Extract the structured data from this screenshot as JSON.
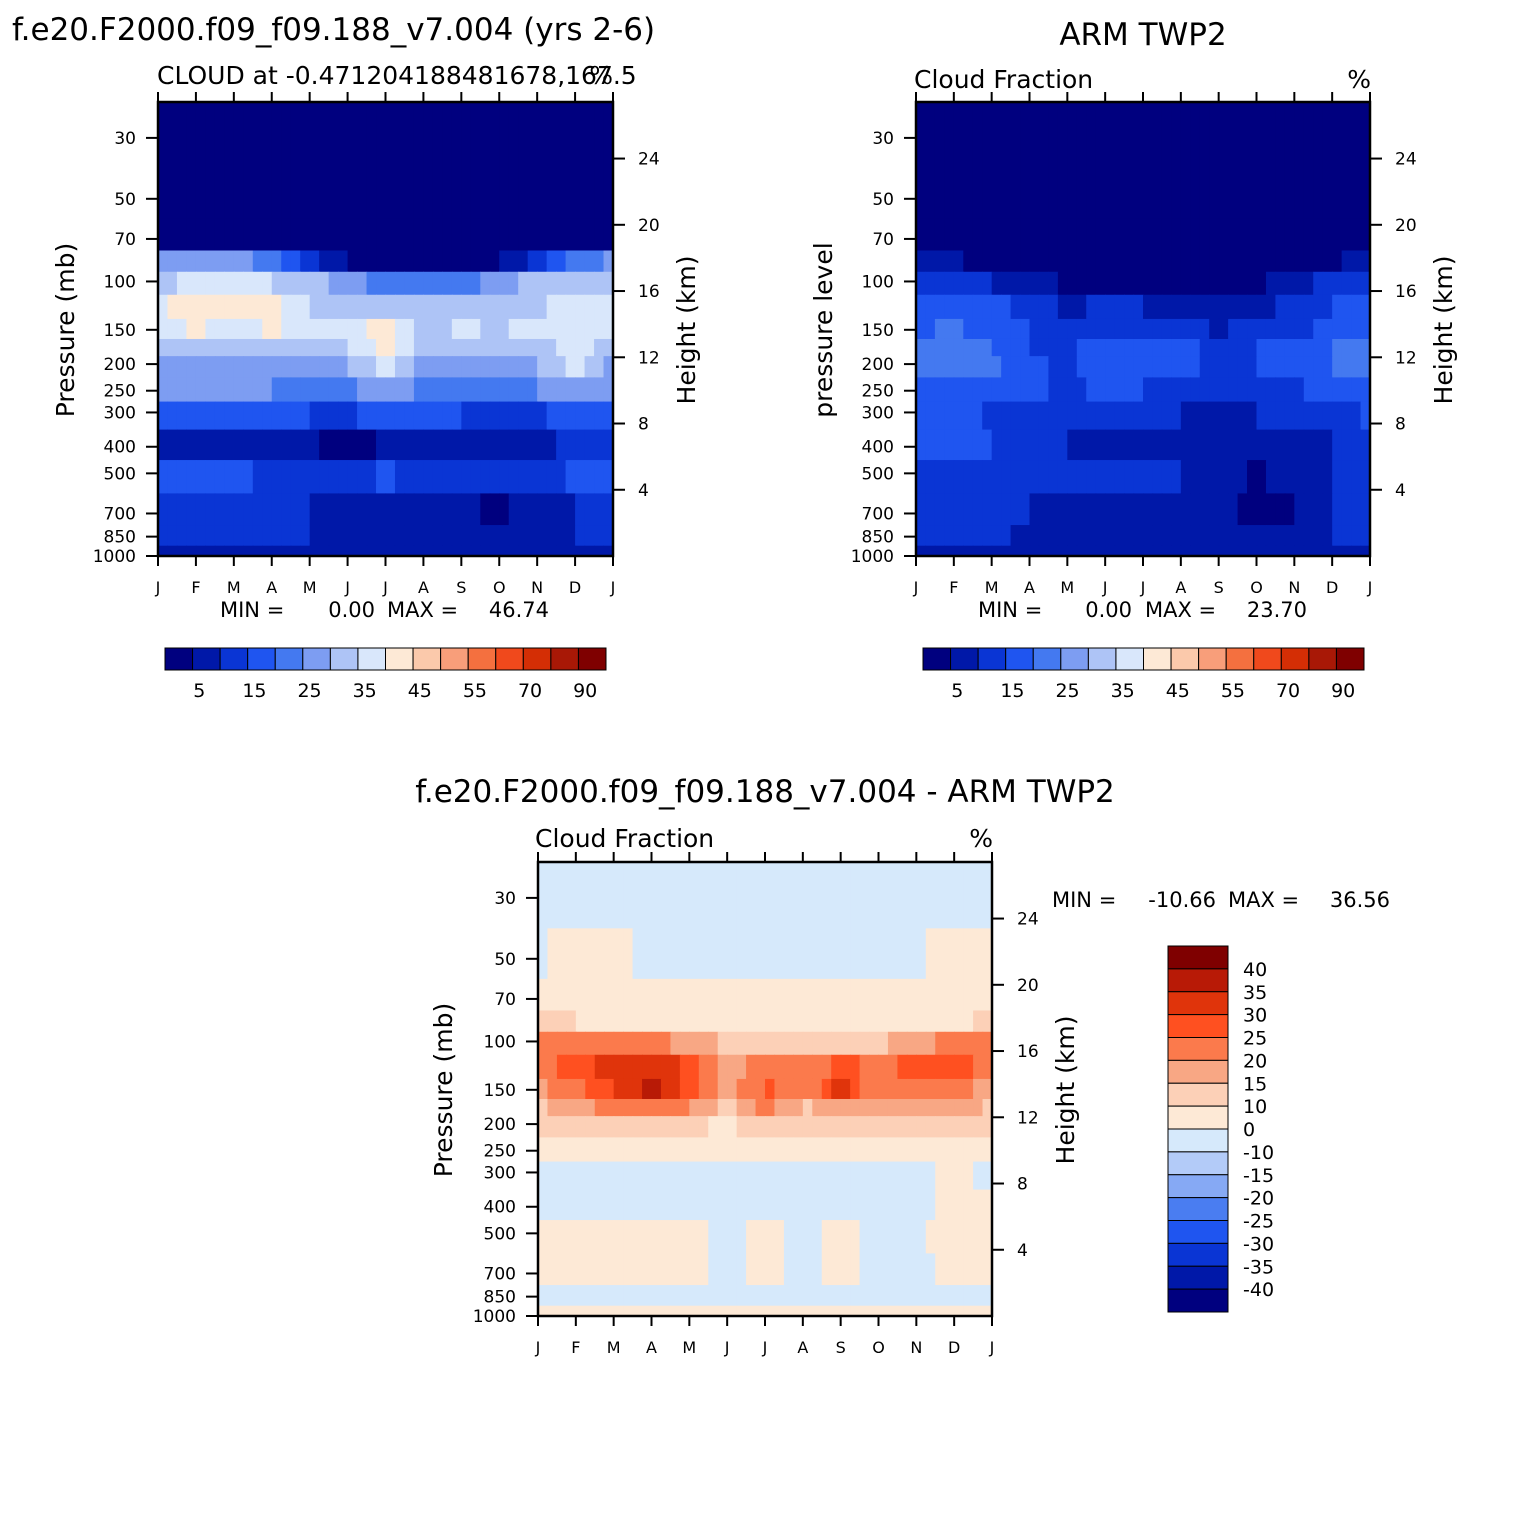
{
  "figure": {
    "top_left_title": "f.e20.F2000.f09_f09.188_v7.004 (yrs 2-6)",
    "top_right_title": "ARM TWP2",
    "bottom_title": "f.e20.F2000.f09_f09.188_v7.004 - ARM TWP2"
  },
  "colors": {
    "seq_palette": [
      "#00007f",
      "#0018a8",
      "#0a35d4",
      "#1f55f0",
      "#4479f0",
      "#7d9df2",
      "#aec4f6",
      "#d9e7fb",
      "#fde9d6",
      "#fbc9ab",
      "#f89e7a",
      "#f4703f",
      "#f0491c",
      "#d42e05",
      "#a81806",
      "#7f0000"
    ],
    "diff_palette": [
      "#7f0000",
      "#b81a06",
      "#e0340b",
      "#ff5020",
      "#fb7a4c",
      "#f8a784",
      "#fcd0b7",
      "#fde9d6",
      "#d6e9fb",
      "#b3cbf8",
      "#86a9f4",
      "#4a7df1",
      "#1f55f0",
      "#0a35d4",
      "#0018a8",
      "#00007f"
    ]
  },
  "chart_data": [
    {
      "type": "heatmap",
      "title": "CLOUD at -0.471204188481678,167.5",
      "subtitle_units": "%",
      "xlabel": "",
      "ylabel": "Pressure (mb)",
      "ylabel_right": "Height (km)",
      "x": [
        "J",
        "F",
        "M",
        "A",
        "M",
        "J",
        "J",
        "A",
        "S",
        "O",
        "N",
        "D",
        "J"
      ],
      "y_pressure_ticks": [
        30,
        50,
        70,
        100,
        150,
        200,
        250,
        300,
        400,
        500,
        700,
        850,
        1000
      ],
      "y_height_ticks": [
        4,
        8,
        12,
        16,
        20,
        24
      ],
      "min_label": "MIN =",
      "min_value": "0.00",
      "max_label": "MAX =",
      "max_value": "46.74",
      "levels": [
        0,
        5,
        10,
        15,
        20,
        25,
        30,
        35,
        40,
        45,
        50,
        55,
        60,
        70,
        80,
        90
      ],
      "colorbar_labels": [
        "5",
        "15",
        "25",
        "35",
        "45",
        "55",
        "70",
        "90"
      ],
      "pressure_rows": [
        30,
        50,
        70,
        85,
        100,
        125,
        150,
        175,
        200,
        250,
        300,
        400,
        500,
        700,
        850,
        990
      ],
      "values": [
        [
          0,
          0,
          0,
          0,
          0,
          0,
          0,
          0,
          0,
          0,
          0,
          0,
          0
        ],
        [
          0,
          0,
          0,
          0,
          0,
          0,
          0,
          0,
          0,
          0,
          0,
          0,
          0
        ],
        [
          2,
          1,
          1,
          1,
          1,
          0,
          0,
          0,
          0,
          0,
          1,
          1,
          2
        ],
        [
          26,
          27,
          27,
          22,
          12,
          5,
          3,
          3,
          3,
          5,
          12,
          22,
          26
        ],
        [
          34,
          36,
          36,
          35,
          32,
          27,
          22,
          22,
          23,
          27,
          32,
          34,
          34
        ],
        [
          38,
          44,
          42,
          42,
          35,
          30,
          33,
          30,
          30,
          31,
          34,
          38,
          38
        ],
        [
          36,
          41,
          38,
          41,
          35,
          36,
          44,
          33,
          36,
          34,
          37,
          39,
          36
        ],
        [
          33,
          34,
          33,
          33,
          32,
          34,
          43,
          31,
          30,
          32,
          32,
          37,
          33
        ],
        [
          28,
          28,
          29,
          28,
          30,
          29,
          37,
          28,
          26,
          28,
          30,
          36,
          28
        ],
        [
          25,
          25,
          26,
          25,
          24,
          24,
          27,
          24,
          24,
          24,
          25,
          30,
          25
        ],
        [
          15,
          16,
          17,
          16,
          15,
          14,
          18,
          15,
          15,
          14,
          14,
          17,
          15
        ],
        [
          10,
          6,
          6,
          6,
          6,
          3,
          6,
          6,
          6,
          6,
          6,
          13,
          10
        ],
        [
          17,
          18,
          17,
          12,
          13,
          10,
          16,
          10,
          10,
          10,
          10,
          17,
          17
        ],
        [
          14,
          12,
          10,
          10,
          10,
          7,
          7,
          7,
          6,
          4,
          7,
          10,
          14
        ],
        [
          13,
          12,
          10,
          10,
          10,
          7,
          7,
          7,
          8,
          7,
          8,
          10,
          13
        ],
        [
          10,
          9,
          9,
          9,
          9,
          9,
          9,
          9,
          9,
          9,
          9,
          9,
          10
        ]
      ]
    },
    {
      "type": "heatmap",
      "title": "Cloud Fraction",
      "subtitle_units": "%",
      "xlabel": "",
      "ylabel": "pressure level",
      "ylabel_right": "Height (km)",
      "x": [
        "J",
        "F",
        "M",
        "A",
        "M",
        "J",
        "J",
        "A",
        "S",
        "O",
        "N",
        "D",
        "J"
      ],
      "y_pressure_ticks": [
        30,
        50,
        70,
        100,
        150,
        200,
        250,
        300,
        400,
        500,
        700,
        850,
        1000
      ],
      "y_height_ticks": [
        4,
        8,
        12,
        16,
        20,
        24
      ],
      "min_label": "MIN =",
      "min_value": "0.00",
      "max_label": "MAX =",
      "max_value": "23.70",
      "levels": [
        0,
        5,
        10,
        15,
        20,
        25,
        30,
        35,
        40,
        45,
        50,
        55,
        60,
        70,
        80,
        90
      ],
      "colorbar_labels": [
        "5",
        "15",
        "25",
        "35",
        "45",
        "55",
        "70",
        "90"
      ],
      "pressure_rows": [
        30,
        50,
        70,
        85,
        100,
        125,
        150,
        175,
        200,
        250,
        300,
        400,
        500,
        700,
        850,
        990
      ],
      "values": [
        [
          0,
          0,
          0,
          0,
          0,
          0,
          0,
          0,
          0,
          0,
          0,
          0,
          0
        ],
        [
          0,
          0,
          0,
          0,
          0,
          0,
          0,
          0,
          0,
          0,
          0,
          0,
          0
        ],
        [
          1,
          0,
          0,
          0,
          0,
          0,
          0,
          0,
          0,
          0,
          0,
          0,
          2
        ],
        [
          8,
          6,
          3,
          1,
          1,
          1,
          1,
          1,
          1,
          1,
          2,
          4,
          10
        ],
        [
          14,
          13,
          10,
          7,
          4,
          3,
          3,
          4,
          4,
          4,
          7,
          12,
          15
        ],
        [
          17,
          18,
          17,
          12,
          9,
          11,
          10,
          9,
          8,
          8,
          12,
          15,
          18
        ],
        [
          19,
          21,
          18,
          15,
          12,
          14,
          14,
          14,
          9,
          12,
          14,
          16,
          19
        ],
        [
          21,
          23,
          20,
          15,
          13,
          20,
          19,
          17,
          12,
          15,
          15,
          20,
          21
        ],
        [
          21,
          23,
          22,
          16,
          14,
          19,
          19,
          17,
          13,
          15,
          15,
          20,
          22
        ],
        [
          18,
          20,
          17,
          16,
          14,
          16,
          15,
          14,
          13,
          14,
          14,
          17,
          18
        ],
        [
          16,
          17,
          14,
          14,
          10,
          10,
          10,
          10,
          9,
          10,
          10,
          13,
          16
        ],
        [
          15,
          16,
          15,
          12,
          10,
          9,
          9,
          9,
          8,
          6,
          9,
          10,
          11
        ],
        [
          13,
          14,
          12,
          13,
          10,
          10,
          12,
          10,
          8,
          4,
          8,
          10,
          11
        ],
        [
          12,
          13,
          12,
          10,
          6,
          8,
          6,
          9,
          6,
          4,
          5,
          10,
          12
        ],
        [
          11,
          11,
          11,
          9,
          8,
          9,
          9,
          9,
          9,
          8,
          8,
          10,
          11
        ],
        [
          9,
          9,
          9,
          9,
          9,
          9,
          9,
          9,
          9,
          9,
          9,
          9,
          9
        ]
      ]
    },
    {
      "type": "heatmap",
      "title": "Cloud Fraction",
      "subtitle_units": "%",
      "xlabel": "",
      "ylabel": "Pressure (mb)",
      "ylabel_right": "Height (km)",
      "x": [
        "J",
        "F",
        "M",
        "A",
        "M",
        "J",
        "J",
        "A",
        "S",
        "O",
        "N",
        "D",
        "J"
      ],
      "y_pressure_ticks": [
        30,
        50,
        70,
        100,
        150,
        200,
        250,
        300,
        400,
        500,
        700,
        850,
        1000
      ],
      "y_height_ticks": [
        4,
        8,
        12,
        16,
        20,
        24
      ],
      "min_label": "MIN =",
      "min_value": "-10.66",
      "max_label": "MAX =",
      "max_value": "36.56",
      "levels": [
        40,
        35,
        30,
        25,
        20,
        15,
        10,
        0,
        -10,
        -15,
        -20,
        -25,
        -30,
        -35,
        -40
      ],
      "colorbar_labels": [
        "40",
        "35",
        "30",
        "25",
        "20",
        "15",
        "10",
        "0",
        "-10",
        "-15",
        "-20",
        "-25",
        "-30",
        "-35",
        "-40"
      ],
      "pressure_rows": [
        30,
        50,
        70,
        85,
        100,
        125,
        150,
        175,
        200,
        250,
        300,
        400,
        500,
        700,
        850,
        990
      ],
      "values": [
        [
          -2,
          -2,
          -2,
          -2,
          -2,
          -2,
          -2,
          -2,
          -2,
          -2,
          -2,
          -2,
          -2
        ],
        [
          -1,
          2,
          1,
          -1,
          -1,
          -1,
          -1,
          -1,
          -1,
          -1,
          -1,
          2,
          1
        ],
        [
          2,
          2,
          2,
          1,
          1,
          1,
          1,
          1,
          1,
          1,
          1,
          2,
          2
        ],
        [
          12,
          10,
          9,
          6,
          4,
          2,
          2,
          2,
          2,
          2,
          4,
          7,
          12
        ],
        [
          20,
          22,
          24,
          22,
          18,
          14,
          12,
          14,
          14,
          14,
          18,
          22,
          20
        ],
        [
          22,
          28,
          32,
          34,
          28,
          18,
          22,
          20,
          26,
          24,
          26,
          28,
          22
        ],
        [
          18,
          24,
          30,
          36,
          28,
          17,
          26,
          20,
          33,
          20,
          24,
          22,
          18
        ],
        [
          14,
          18,
          22,
          24,
          20,
          12,
          22,
          14,
          20,
          16,
          16,
          18,
          14
        ],
        [
          10,
          12,
          14,
          14,
          12,
          8,
          14,
          10,
          12,
          10,
          12,
          14,
          10
        ],
        [
          6,
          6,
          6,
          6,
          6,
          4,
          6,
          4,
          6,
          4,
          6,
          8,
          6
        ],
        [
          -2,
          -4,
          -3,
          -3,
          -2,
          -2,
          -3,
          -2,
          -2,
          -2,
          -2,
          2,
          -2
        ],
        [
          -2,
          -2,
          -2,
          -2,
          -3,
          -3,
          -3,
          -3,
          -2,
          -2,
          -3,
          2,
          2
        ],
        [
          2,
          2,
          2,
          2,
          2,
          -2,
          2,
          -2,
          2,
          -2,
          -2,
          4,
          2
        ],
        [
          2,
          2,
          2,
          2,
          2,
          -2,
          2,
          -2,
          2,
          -2,
          -2,
          2,
          2
        ],
        [
          -2,
          -2,
          -2,
          -2,
          -2,
          -2,
          -2,
          -2,
          -2,
          -2,
          -2,
          -2,
          -2
        ],
        [
          2,
          2,
          2,
          2,
          2,
          2,
          2,
          2,
          2,
          2,
          2,
          2,
          2
        ]
      ]
    }
  ]
}
